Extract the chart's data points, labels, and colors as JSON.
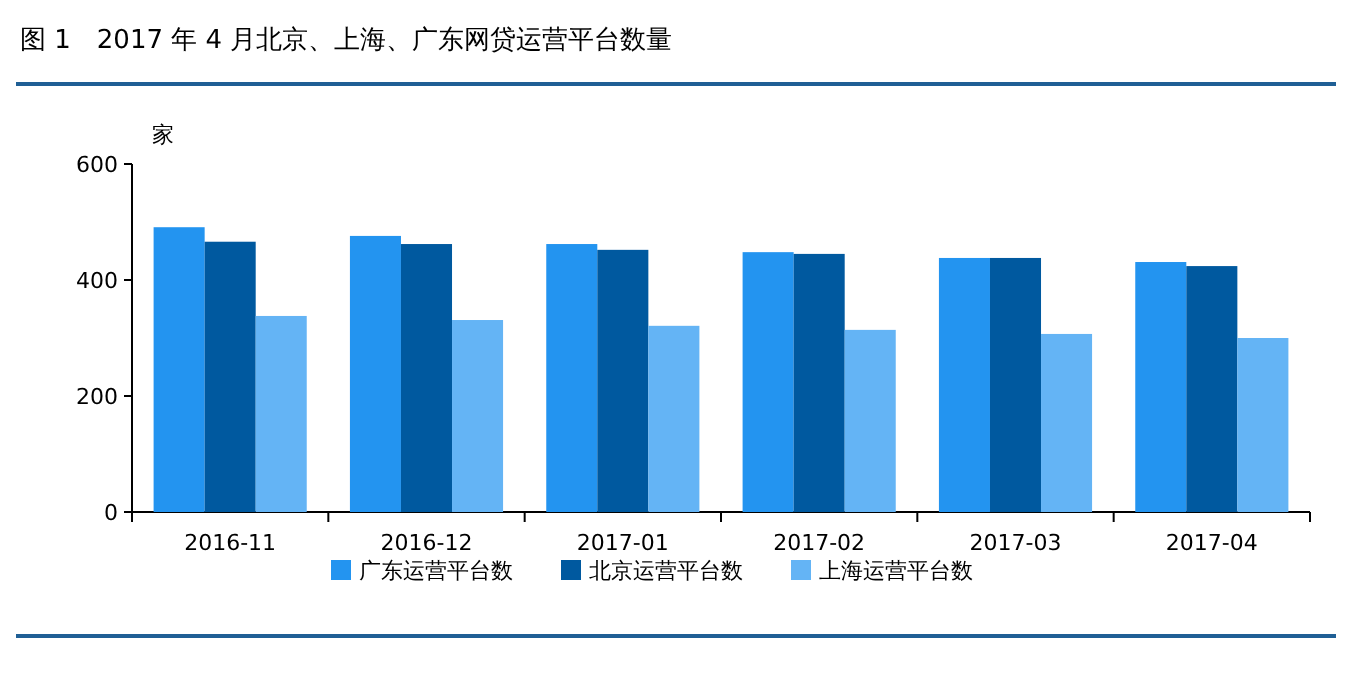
{
  "chart_data": {
    "type": "bar",
    "title": "图 1　2017 年 4 月北京、上海、广东网贷运营平台数量",
    "ylabel": "家",
    "categories": [
      "2016-11",
      "2016-12",
      "2017-01",
      "2017-02",
      "2017-03",
      "2017-04"
    ],
    "series": [
      {
        "name": "广东运营平台数",
        "color": "#2394f0",
        "values": [
          491,
          476,
          462,
          448,
          438,
          431
        ]
      },
      {
        "name": "北京运营平台数",
        "color": "#00599f",
        "values": [
          466,
          462,
          452,
          445,
          438,
          424
        ]
      },
      {
        "name": "上海运营平台数",
        "color": "#64b4f5",
        "values": [
          338,
          331,
          321,
          314,
          307,
          300
        ]
      }
    ],
    "ylim": [
      0,
      600
    ],
    "yticks": [
      0,
      200,
      400,
      600
    ],
    "grid": false,
    "legend": "bottom"
  }
}
